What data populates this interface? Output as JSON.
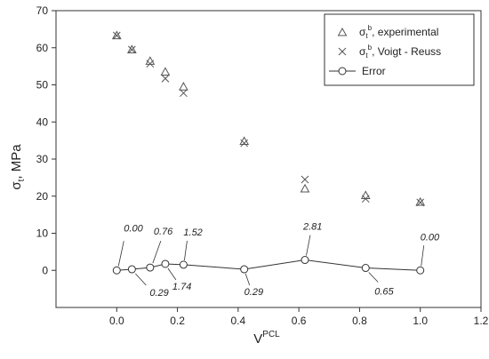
{
  "chart_data": {
    "type": "scatter",
    "title": "",
    "xlabel": "V",
    "xlabel_superscript": "PCL",
    "ylabel": "σ",
    "ylabel_subscript": "t",
    "ylabel_unit": ", MPa",
    "xlim": [
      -0.2,
      1.2
    ],
    "ylim": [
      -10,
      70
    ],
    "x_ticks": [
      0.0,
      0.2,
      0.4,
      0.6,
      0.8,
      1.0,
      1.2
    ],
    "x_tick_labels": [
      "0.0",
      "0.2",
      "0.4",
      "0.6",
      "0.8",
      "1.0",
      "1.2"
    ],
    "y_ticks": [
      0,
      10,
      20,
      30,
      40,
      50,
      60,
      70
    ],
    "y_tick_labels": [
      "0",
      "10",
      "20",
      "30",
      "40",
      "50",
      "60",
      "70"
    ],
    "grid": false,
    "legend_position": "top-right",
    "series": [
      {
        "name": "experimental",
        "legend_symbol": "σ",
        "legend_subscript": "t",
        "legend_superscript": "b",
        "marker": "triangle",
        "color": "#555555",
        "points": [
          {
            "x": 0.0,
            "y": 63.3
          },
          {
            "x": 0.05,
            "y": 59.5
          },
          {
            "x": 0.11,
            "y": 56.4
          },
          {
            "x": 0.16,
            "y": 53.5
          },
          {
            "x": 0.22,
            "y": 49.5
          },
          {
            "x": 0.42,
            "y": 34.8
          },
          {
            "x": 0.62,
            "y": 22.0
          },
          {
            "x": 0.82,
            "y": 20.2
          },
          {
            "x": 1.0,
            "y": 18.4
          }
        ]
      },
      {
        "name": "Voigt - Reuss",
        "legend_symbol": "σ",
        "legend_subscript": "t",
        "legend_superscript": "b",
        "marker": "x",
        "color": "#555555",
        "points": [
          {
            "x": 0.0,
            "y": 63.3
          },
          {
            "x": 0.05,
            "y": 59.5
          },
          {
            "x": 0.11,
            "y": 55.7
          },
          {
            "x": 0.16,
            "y": 51.7
          },
          {
            "x": 0.22,
            "y": 47.8
          },
          {
            "x": 0.42,
            "y": 34.3
          },
          {
            "x": 0.62,
            "y": 24.5
          },
          {
            "x": 0.82,
            "y": 19.3
          },
          {
            "x": 1.0,
            "y": 18.3
          }
        ]
      },
      {
        "name": "Error",
        "marker": "circle",
        "line": true,
        "color": "#333333",
        "points": [
          {
            "x": 0.0,
            "y": 0.0,
            "label": "0.00"
          },
          {
            "x": 0.05,
            "y": 0.29,
            "label": "0.29"
          },
          {
            "x": 0.11,
            "y": 0.76,
            "label": "0.76"
          },
          {
            "x": 0.16,
            "y": 1.74,
            "label": "1.74"
          },
          {
            "x": 0.22,
            "y": 1.52,
            "label": "1.52"
          },
          {
            "x": 0.42,
            "y": 0.29,
            "label": "0.29"
          },
          {
            "x": 0.62,
            "y": 2.81,
            "label": "2.81"
          },
          {
            "x": 0.82,
            "y": 0.65,
            "label": "0.65"
          },
          {
            "x": 1.0,
            "y": 0.0,
            "label": "0.00"
          }
        ]
      }
    ]
  }
}
